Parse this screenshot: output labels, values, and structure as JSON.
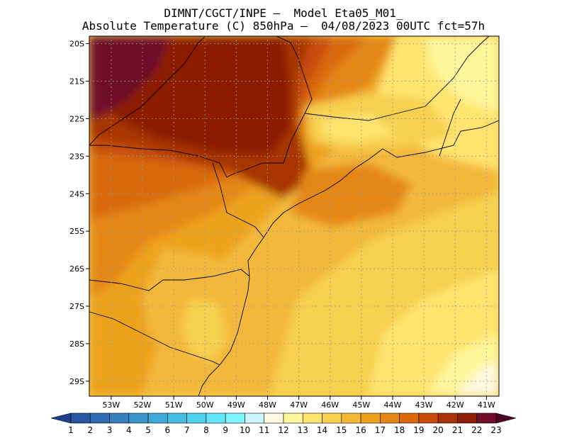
{
  "header": {
    "line1": "DIMNT/CGCT/INPE –  Model Eta05_M01_",
    "line2": "Absolute Temperature (C) 850hPa –  04/08/2023 00UTC fct=57h"
  },
  "map": {
    "lat_labels": [
      "20S",
      "21S",
      "22S",
      "23S",
      "24S",
      "25S",
      "26S",
      "27S",
      "28S",
      "29S"
    ],
    "lon_labels": [
      "53W",
      "52W",
      "51W",
      "50W",
      "49W",
      "48W",
      "47W",
      "46W",
      "45W",
      "44W",
      "43W",
      "42W",
      "41W"
    ],
    "extent": {
      "lon_min": -53.7,
      "lon_max": -40.6,
      "lat_min": -29.4,
      "lat_max": -19.8
    }
  },
  "colorbar": {
    "labels": [
      "1",
      "2",
      "3",
      "4",
      "5",
      "6",
      "7",
      "8",
      "9",
      "10",
      "11",
      "12",
      "13",
      "14",
      "15",
      "16",
      "17",
      "18",
      "19",
      "20",
      "21",
      "22",
      "23"
    ],
    "colors": [
      "#1f3f8f",
      "#2856a0",
      "#2f6cb0",
      "#357fbd",
      "#3a93c9",
      "#3fa8d6",
      "#45bde2",
      "#4fd2ee",
      "#66e6f8",
      "#7ff5ff",
      "#cdf5ff",
      "#fff8e0",
      "#fff59a",
      "#ffe470",
      "#f7d04f",
      "#f3b83a",
      "#eda21f",
      "#e58714",
      "#d9690b",
      "#c64d08",
      "#a83406",
      "#8c1e05",
      "#6f0d2a",
      "#4e0522"
    ]
  }
}
